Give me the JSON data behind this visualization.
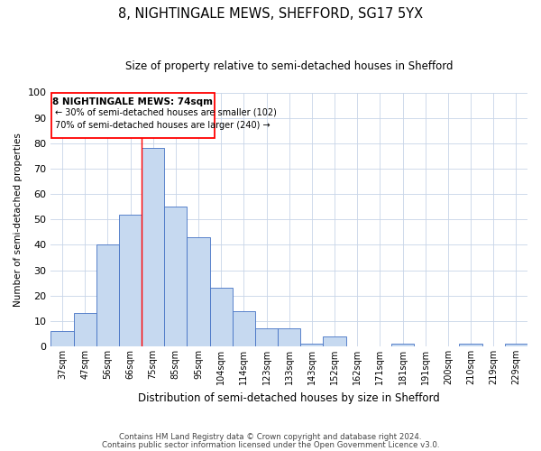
{
  "title": "8, NIGHTINGALE MEWS, SHEFFORD, SG17 5YX",
  "subtitle": "Size of property relative to semi-detached houses in Shefford",
  "xlabel": "Distribution of semi-detached houses by size in Shefford",
  "ylabel": "Number of semi-detached properties",
  "bar_labels": [
    "37sqm",
    "47sqm",
    "56sqm",
    "66sqm",
    "75sqm",
    "85sqm",
    "95sqm",
    "104sqm",
    "114sqm",
    "123sqm",
    "133sqm",
    "143sqm",
    "152sqm",
    "162sqm",
    "171sqm",
    "181sqm",
    "191sqm",
    "200sqm",
    "210sqm",
    "219sqm",
    "229sqm"
  ],
  "bar_values": [
    6,
    13,
    40,
    52,
    78,
    55,
    43,
    23,
    14,
    7,
    7,
    1,
    4,
    0,
    0,
    1,
    0,
    0,
    1,
    0,
    1
  ],
  "bar_color": "#c6d9f0",
  "bar_edge_color": "#4472c4",
  "ylim": [
    0,
    100
  ],
  "yticks": [
    0,
    10,
    20,
    30,
    40,
    50,
    60,
    70,
    80,
    90,
    100
  ],
  "property_label": "8 NIGHTINGALE MEWS: 74sqm",
  "pct_smaller": 30,
  "pct_larger": 70,
  "count_smaller": 102,
  "count_larger": 240,
  "vline_x_index": 4,
  "footer1": "Contains HM Land Registry data © Crown copyright and database right 2024.",
  "footer2": "Contains public sector information licensed under the Open Government Licence v3.0.",
  "background_color": "#ffffff",
  "grid_color": "#c8d4e8"
}
